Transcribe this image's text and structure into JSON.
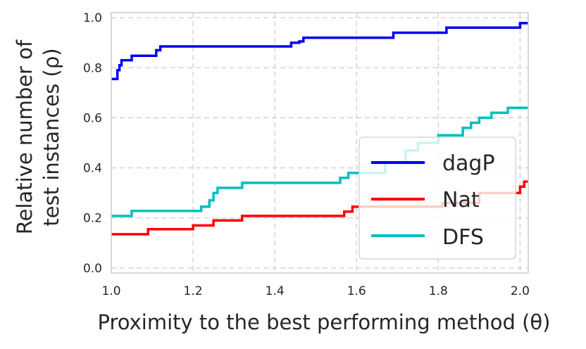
{
  "chart_data": {
    "type": "line",
    "title": "",
    "xlabel": "Proximity to the best performing method (θ)",
    "ylabel_lines": [
      "Relative number of",
      "test instances (ρ)"
    ],
    "xlim": [
      1.0,
      2.02
    ],
    "ylim": [
      -0.02,
      1.02
    ],
    "xticks": [
      1.0,
      1.2,
      1.4,
      1.6,
      1.8,
      2.0
    ],
    "yticks": [
      0.0,
      0.2,
      0.4,
      0.6,
      0.8,
      1.0
    ],
    "xtick_labels": [
      "1.0",
      "1.2",
      "1.4",
      "1.6",
      "1.8",
      "2.0"
    ],
    "ytick_labels": [
      "0.0",
      "0.2",
      "0.4",
      "0.6",
      "0.8",
      "1.0"
    ],
    "grid": true,
    "legend_position": "lower-right",
    "series": [
      {
        "name": "dagP",
        "color": "#0000ee",
        "step_points": [
          [
            1.0,
            0.755
          ],
          [
            1.015,
            0.79
          ],
          [
            1.02,
            0.81
          ],
          [
            1.025,
            0.83
          ],
          [
            1.05,
            0.848
          ],
          [
            1.11,
            0.87
          ],
          [
            1.12,
            0.885
          ],
          [
            1.44,
            0.9
          ],
          [
            1.46,
            0.905
          ],
          [
            1.47,
            0.92
          ],
          [
            1.69,
            0.94
          ],
          [
            1.82,
            0.96
          ],
          [
            2.0,
            0.978
          ],
          [
            2.02,
            0.978
          ]
        ]
      },
      {
        "name": "Nat",
        "color": "#ff0000",
        "step_points": [
          [
            1.0,
            0.135
          ],
          [
            1.09,
            0.155
          ],
          [
            1.2,
            0.17
          ],
          [
            1.25,
            0.19
          ],
          [
            1.32,
            0.208
          ],
          [
            1.57,
            0.225
          ],
          [
            1.59,
            0.245
          ],
          [
            1.81,
            0.26
          ],
          [
            1.9,
            0.3
          ],
          [
            2.0,
            0.325
          ],
          [
            2.01,
            0.345
          ],
          [
            2.02,
            0.345
          ]
        ]
      },
      {
        "name": "DFS",
        "color": "#00bfbf",
        "step_points": [
          [
            1.0,
            0.208
          ],
          [
            1.05,
            0.228
          ],
          [
            1.22,
            0.245
          ],
          [
            1.24,
            0.27
          ],
          [
            1.25,
            0.3
          ],
          [
            1.26,
            0.32
          ],
          [
            1.32,
            0.34
          ],
          [
            1.56,
            0.36
          ],
          [
            1.58,
            0.38
          ],
          [
            1.67,
            0.42
          ],
          [
            1.72,
            0.47
          ],
          [
            1.75,
            0.5
          ],
          [
            1.8,
            0.53
          ],
          [
            1.86,
            0.56
          ],
          [
            1.88,
            0.58
          ],
          [
            1.9,
            0.6
          ],
          [
            1.93,
            0.62
          ],
          [
            1.97,
            0.64
          ],
          [
            2.02,
            0.64
          ]
        ]
      }
    ]
  }
}
